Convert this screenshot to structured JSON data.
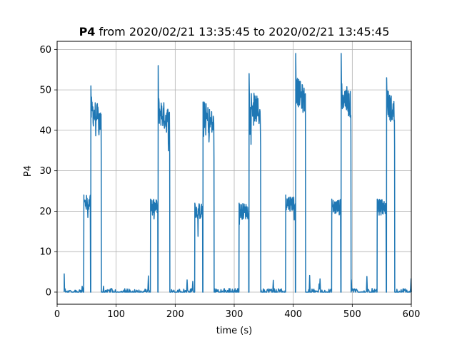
{
  "chart_data": {
    "type": "line",
    "title_bold": "P4",
    "title_rest": " from 2020/02/21 13:35:45 to 2020/02/21 13:45:45",
    "xlabel": "time (s)",
    "ylabel": "P4",
    "xlim": [
      0,
      600
    ],
    "ylim": [
      -3,
      62
    ],
    "xticks": [
      0,
      100,
      200,
      300,
      400,
      500,
      600
    ],
    "yticks": [
      0,
      10,
      20,
      30,
      40,
      50,
      60
    ],
    "grid": true,
    "line_color": "#1f77b4",
    "cycles": [
      {
        "t_low_start": 45,
        "low_level": 22,
        "t_high_start": 57,
        "spike": 51,
        "high_level": 42,
        "t_high_end": 75
      },
      {
        "t_low_start": 158,
        "low_level": 21,
        "t_high_start": 171,
        "spike": 56,
        "high_level": 42,
        "t_high_end": 191
      },
      {
        "t_low_start": 233,
        "low_level": 20,
        "t_high_start": 247,
        "spike": 47,
        "high_level": 41,
        "t_high_end": 266
      },
      {
        "t_low_start": 308,
        "low_level": 20,
        "t_high_start": 325,
        "spike": 54,
        "high_level": 44,
        "t_high_end": 345
      },
      {
        "t_low_start": 387,
        "low_level": 22,
        "t_high_start": 404,
        "spike": 59,
        "high_level": 47,
        "t_high_end": 421
      },
      {
        "t_low_start": 465,
        "low_level": 21,
        "t_high_start": 481,
        "spike": 59,
        "high_level": 46,
        "t_high_end": 498
      },
      {
        "t_low_start": 542,
        "low_level": 21,
        "t_high_start": 558,
        "spike": 53,
        "high_level": 44,
        "t_high_end": 572
      }
    ],
    "series": [
      {
        "x_range": [
          12,
          600
        ],
        "baseline": 0
      }
    ]
  }
}
